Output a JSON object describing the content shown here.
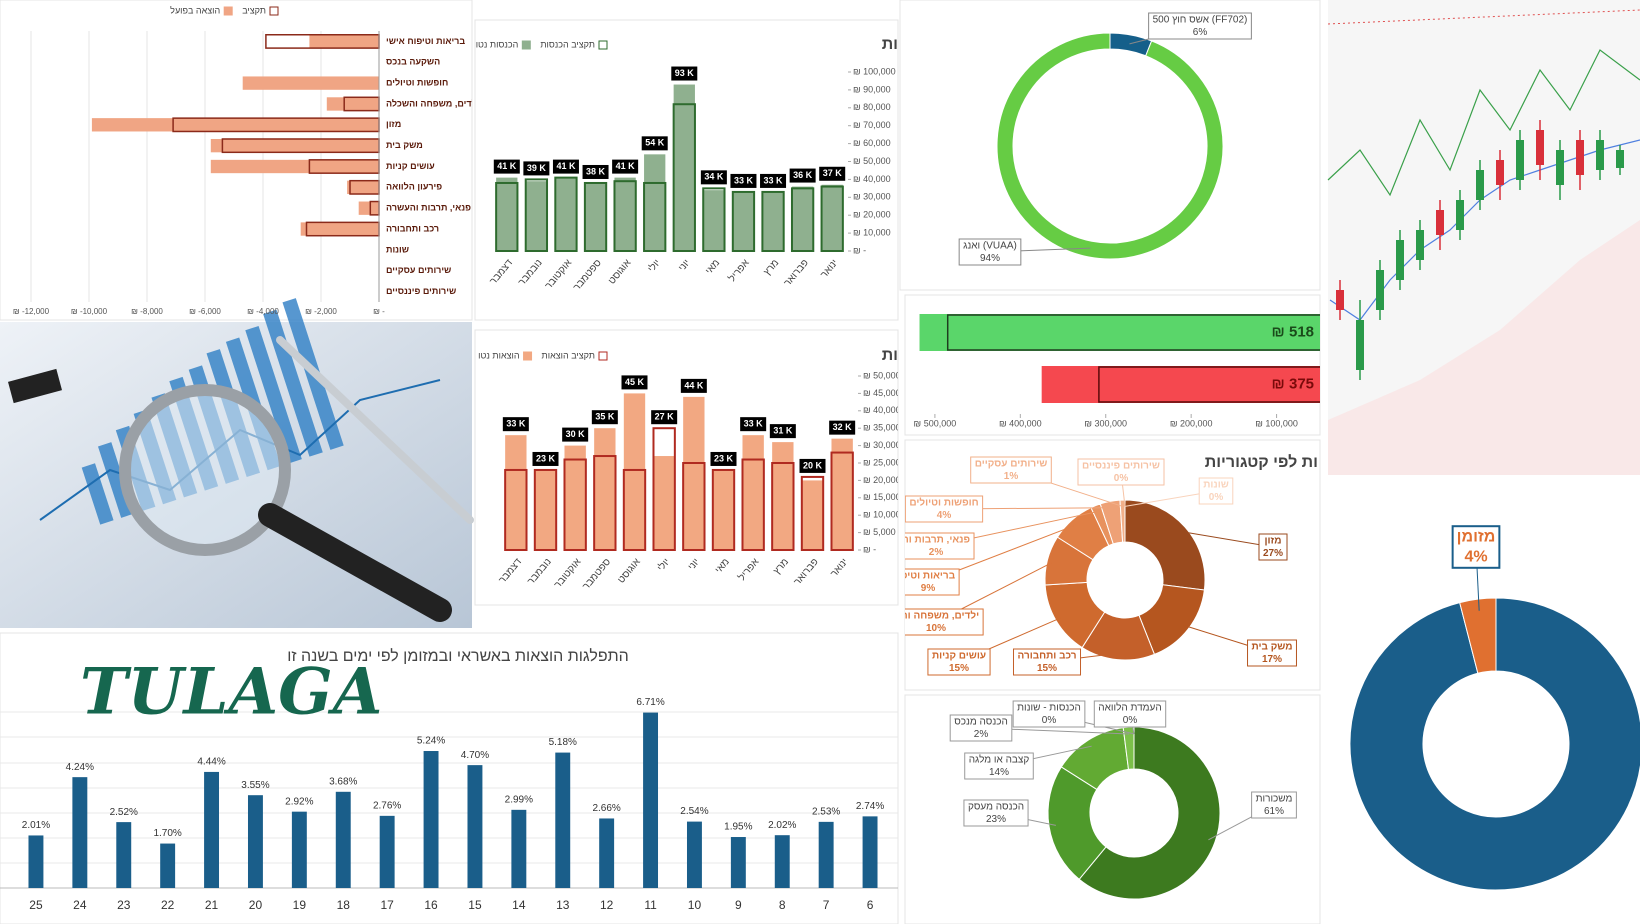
{
  "brand": "TULAGA",
  "chart_data": [
    {
      "type": "barh",
      "categories": [
        "בריאות וטיפוח אישי",
        "השקעה בנכס",
        "חופשות וטיולים",
        "לדים, משפחה והשכלה",
        "מזון",
        "משק בית",
        "עושים קניות",
        "פירעון הלוואה",
        "פנאי, תרבות והעשרה",
        "רכב ותחבורה",
        "שונות",
        "שירותים עסקיים",
        "שירותים פיננסיים"
      ],
      "series": [
        {
          "name": "תקציב",
          "color": "#8b2a1a",
          "style": "outline",
          "values": [
            -3900,
            0,
            0,
            -1200,
            -7100,
            -5400,
            -2400,
            -1000,
            -300,
            -2500,
            0,
            0,
            0
          ]
        },
        {
          "name": "הוצאה בפועל",
          "color": "#f0a584",
          "style": "fill",
          "values": [
            -2400,
            0,
            -4700,
            -1800,
            -9900,
            -5800,
            -5800,
            -1100,
            -700,
            -2700,
            0,
            0,
            0
          ]
        }
      ],
      "xlim": [
        -12000,
        0
      ],
      "xticks": [
        {
          "value": -12000,
          "label": "₪ -12,000"
        },
        {
          "value": -10000,
          "label": "₪ -10,000"
        },
        {
          "value": -8000,
          "label": "₪ -8,000"
        },
        {
          "value": -6000,
          "label": "₪ -6,000"
        },
        {
          "value": -4000,
          "label": "₪ -4,000"
        },
        {
          "value": -2000,
          "label": "₪ -2,000"
        },
        {
          "value": 0,
          "label": "₪ -"
        }
      ],
      "grid": true
    },
    {
      "type": "bar",
      "title": "ות",
      "categories": [
        "דצמבר",
        "נובמבר",
        "אוקטובר",
        "ספטמבר",
        "אוגוסט",
        "יולי",
        "יוני",
        "מאי",
        "אפריל",
        "מרץ",
        "פברואר",
        "ינואר"
      ],
      "series": [
        {
          "name": "תקציב הכנסות",
          "color": "#2e6b2e",
          "style": "outline",
          "values": [
            38000,
            40000,
            41000,
            38000,
            39000,
            38000,
            82000,
            35000,
            33000,
            33000,
            35000,
            36000
          ]
        },
        {
          "name": "הכנסות נטו",
          "color": "#8fb08f",
          "style": "fill",
          "values": [
            41000,
            39000,
            41000,
            38000,
            41000,
            54000,
            93000,
            34000,
            33000,
            33000,
            36000,
            37000
          ],
          "value_labels": [
            "41 K",
            "39 K",
            "41 K",
            "38 K",
            "41 K",
            "54 K",
            "93 K",
            "34 K",
            "33 K",
            "33 K",
            "36 K",
            "37 K"
          ]
        }
      ],
      "ylim": [
        0,
        100000
      ],
      "yticks": [
        {
          "value": 0,
          "label": "₪ -"
        },
        {
          "value": 10000,
          "label": "₪ 10,000"
        },
        {
          "value": 20000,
          "label": "₪ 20,000"
        },
        {
          "value": 30000,
          "label": "₪ 30,000"
        },
        {
          "value": 40000,
          "label": "₪ 40,000"
        },
        {
          "value": 50000,
          "label": "₪ 50,000"
        },
        {
          "value": 60000,
          "label": "₪ 60,000"
        },
        {
          "value": 70000,
          "label": "₪ 70,000"
        },
        {
          "value": 80000,
          "label": "₪ 80,000"
        },
        {
          "value": 90000,
          "label": "₪ 90,000"
        },
        {
          "value": 100000,
          "label": "₪ 100,000"
        }
      ]
    },
    {
      "type": "bar",
      "title": "ות",
      "categories": [
        "דצמבר",
        "נובמבר",
        "אוקטובר",
        "ספטמבר",
        "אוגוסט",
        "יולי",
        "יוני",
        "מאי",
        "אפריל",
        "מרץ",
        "פברואר",
        "ינואר"
      ],
      "series": [
        {
          "name": "תקציב הוצאות",
          "color": "#b02a20",
          "style": "outline",
          "values": [
            23000,
            23000,
            26000,
            27000,
            23000,
            35000,
            25000,
            23000,
            26000,
            25000,
            21000,
            28000
          ]
        },
        {
          "name": "הוצאות נטו",
          "color": "#f2a882",
          "style": "fill",
          "values": [
            33000,
            23000,
            30000,
            35000,
            45000,
            27000,
            44000,
            23000,
            33000,
            31000,
            20000,
            32000
          ],
          "value_labels": [
            "33 K",
            "23 K",
            "30 K",
            "35 K",
            "45 K",
            "27 K",
            "44 K",
            "23 K",
            "33 K",
            "31 K",
            "20 K",
            "32 K"
          ]
        }
      ],
      "ylim": [
        0,
        50000
      ],
      "yticks": [
        {
          "value": 0,
          "label": "₪ -"
        },
        {
          "value": 5000,
          "label": "₪ 5,000"
        },
        {
          "value": 10000,
          "label": "₪ 10,000"
        },
        {
          "value": 15000,
          "label": "₪ 15,000"
        },
        {
          "value": 20000,
          "label": "₪ 20,000"
        },
        {
          "value": 25000,
          "label": "₪ 25,000"
        },
        {
          "value": 30000,
          "label": "₪ 30,000"
        },
        {
          "value": 35000,
          "label": "₪ 35,000"
        },
        {
          "value": 40000,
          "label": "₪ 40,000"
        },
        {
          "value": 45000,
          "label": "₪ 45,000"
        },
        {
          "value": 50000,
          "label": "₪ 50,000"
        }
      ]
    },
    {
      "type": "bar",
      "title": "התפלגות הוצאות באשראי ובמזומן לפי ימים בשנה זו",
      "categories": [
        "25",
        "24",
        "23",
        "22",
        "21",
        "20",
        "19",
        "18",
        "17",
        "16",
        "15",
        "14",
        "13",
        "12",
        "11",
        "10",
        "9",
        "8",
        "7",
        "6"
      ],
      "values": [
        2.01,
        4.24,
        2.52,
        1.7,
        4.44,
        3.55,
        2.92,
        3.68,
        2.76,
        5.24,
        4.7,
        2.99,
        5.18,
        2.66,
        6.71,
        2.54,
        1.95,
        2.02,
        2.53,
        2.74
      ],
      "value_labels": [
        "2.01%",
        "4.24%",
        "2.52%",
        "1.70%",
        "4.44%",
        "3.55%",
        "2.92%",
        "3.68%",
        "2.76%",
        "5.24%",
        "4.70%",
        "2.99%",
        "5.18%",
        "2.66%",
        "6.71%",
        "2.54%",
        "1.95%",
        "2.02%",
        "2.53%",
        "2.74%"
      ],
      "color": "#1a5e8a",
      "ylim": [
        0,
        7
      ]
    },
    {
      "type": "donut",
      "categories": [
        "אשס חוץ 500 (FF702)",
        "ואנג (VUAA)"
      ],
      "values": [
        6,
        94
      ],
      "value_labels": [
        "6%",
        "94%"
      ],
      "colors": [
        "#155f8a",
        "#66cc44"
      ]
    },
    {
      "type": "bullet",
      "values": [
        518000,
        375000
      ],
      "value_labels": [
        "₪ 518",
        "₪ 375"
      ],
      "budget": [
        485000,
        308000
      ],
      "colors": [
        "#5ad66a",
        "#f5484f"
      ],
      "xlim": [
        535000,
        0
      ],
      "xticks": [
        {
          "value": 500000,
          "label": "₪ 500,000"
        },
        {
          "value": 400000,
          "label": "₪ 400,000"
        },
        {
          "value": 300000,
          "label": "₪ 300,000"
        },
        {
          "value": 200000,
          "label": "₪ 200,000"
        },
        {
          "value": 100000,
          "label": "₪ 100,000"
        }
      ]
    },
    {
      "type": "donut",
      "title": "ות לפי קטגוריות",
      "categories": [
        "מזון",
        "משק בית",
        "רכב ותחבורה",
        "עושים קניות",
        "ילדים, משפחה והש",
        "בריאות וטיפ",
        "פנאי, תרבות וה",
        "חופשות וטיולים",
        "שירותים עסקיים",
        "שירותים פיננסיים",
        "שונות"
      ],
      "values": [
        27,
        17,
        15,
        15,
        10,
        9,
        2,
        4,
        1,
        0,
        0
      ],
      "value_labels": [
        "27%",
        "17%",
        "15%",
        "15%",
        "10%",
        "9%",
        "2%",
        "4%",
        "1%",
        "0%",
        "0%"
      ],
      "colors": [
        "#9a4a1e",
        "#b5561f",
        "#c4602a",
        "#cf6a2e",
        "#d8743a",
        "#e07f45",
        "#e8925e",
        "#eea176",
        "#f2b08a",
        "#f6c2a4",
        "#f9d4bd"
      ]
    },
    {
      "type": "donut",
      "categories": [
        "משכורות",
        "הכנסה מעסק",
        "קצבה או מלגה",
        "הכנסה מנכס",
        "הכנסות - שונות",
        "העמדת הלוואה"
      ],
      "values": [
        61,
        23,
        14,
        2,
        0,
        0
      ],
      "value_labels": [
        "61%",
        "23%",
        "14%",
        "2%",
        "0%",
        "0%"
      ],
      "colors": [
        "#3d7a1f",
        "#4f9a2b",
        "#62aa33",
        "#7cc04a",
        "#9ad070",
        "#b8e09a"
      ]
    },
    {
      "type": "donut",
      "categories": [
        null,
        "מזומן"
      ],
      "values": [
        96,
        4
      ],
      "value_labels": [
        null,
        "4%"
      ],
      "colors": [
        "#1a5e8a",
        "#e07030"
      ]
    }
  ]
}
